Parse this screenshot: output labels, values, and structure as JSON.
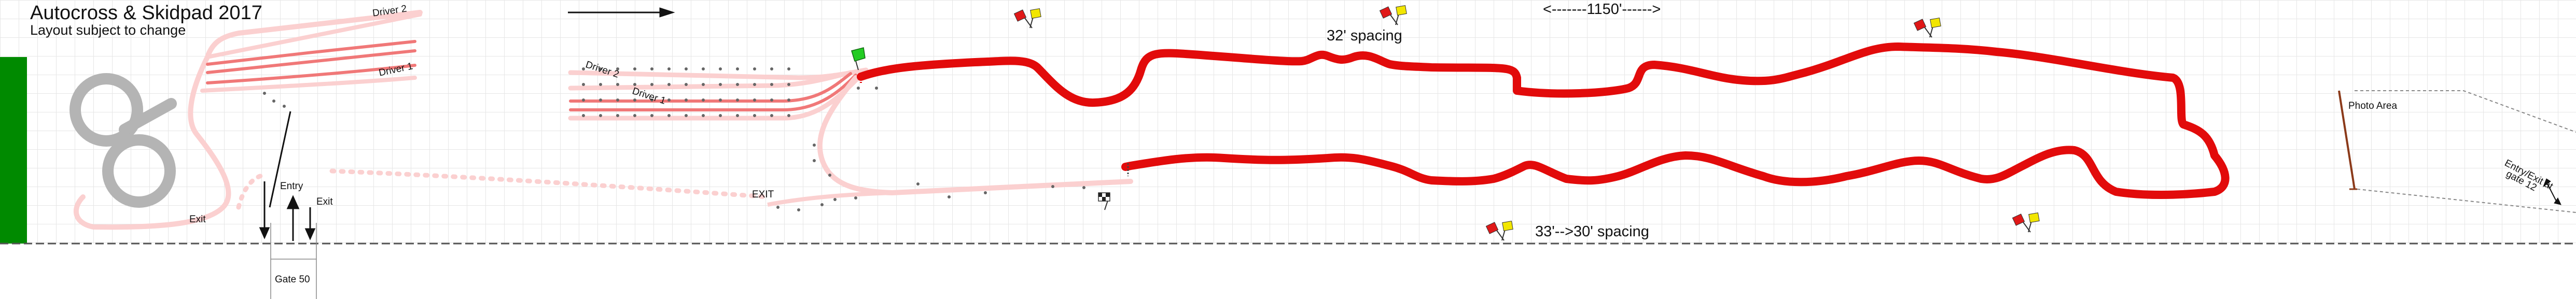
{
  "header": {
    "title": "Autocross & Skidpad 2017",
    "subtitle": "Layout subject to change"
  },
  "labels": {
    "driver_2_right": "Driver 2",
    "driver_1_right": "Driver 1",
    "driver_2_left": "Driver 2",
    "driver_1_left": "Driver 1",
    "exit_skidpad": "Exit",
    "entry": "Entry",
    "exit_gate": "Exit",
    "gate_50": "Gate 50",
    "exit_staging": "EXIT",
    "spacing_top": "32' spacing",
    "spacing_bottom": "33'-->30' spacing",
    "distance": "<-------1150'------>",
    "photo_area": "Photo Area",
    "entry_exit_line1": "Entry/Exit at",
    "entry_exit_line2": "gate 12"
  },
  "colors": {
    "track": "#e20b0b",
    "lane": "#f07878",
    "skidpad": "#b4b4b4",
    "path_light": "#fbd0d0",
    "green_bar": "#008a00",
    "flag_red": "#e01818",
    "flag_yellow": "#f2e600",
    "start_flag": "#22cc22",
    "grid": "#e6e6e6"
  },
  "icons": [
    "flag-pair-icon",
    "start-flag-icon",
    "checkered-flag-icon",
    "direction-arrow-icon"
  ]
}
